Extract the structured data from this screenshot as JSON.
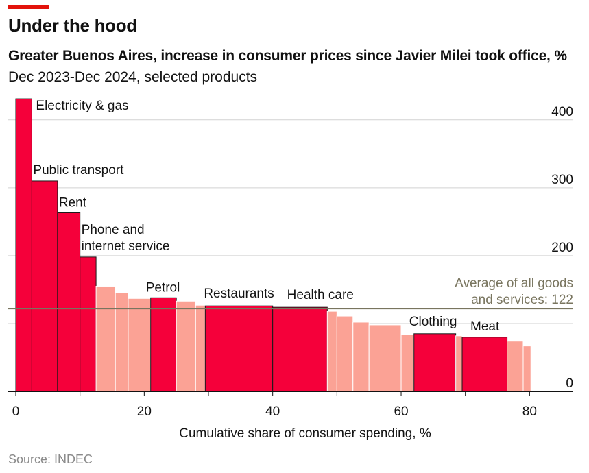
{
  "headline": "Under the hood",
  "title": "Greater Buenos Aires, increase in consumer prices since Javier Milei took office, %",
  "subtitle": "Dec 2023-Dec 2024, selected products",
  "source": "Source: INDEC",
  "colors": {
    "highlight": "#f5003a",
    "other": "#fba295",
    "average_line": "#79755f",
    "accent": "#e3120b"
  },
  "chart_data": {
    "type": "bar",
    "variable_width": true,
    "xlabel": "Cumulative share of consumer spending, %",
    "ylabel": "",
    "xlim": [
      0,
      86
    ],
    "ylim": [
      0,
      420
    ],
    "x_ticks": [
      "0",
      "20",
      "40",
      "60",
      "80"
    ],
    "y_ticks": [
      "400",
      "300",
      "200",
      "0"
    ],
    "grid": true,
    "average": {
      "value": 122,
      "label_line1": "Average of all goods",
      "label_line2": "and services: 122"
    },
    "bars": [
      {
        "x0": 0,
        "x1": 2.5,
        "value": 431,
        "highlight": true,
        "label": "Electricity & gas"
      },
      {
        "x0": 2.5,
        "x1": 6.5,
        "value": 310,
        "highlight": true,
        "label": "Public transport"
      },
      {
        "x0": 6.5,
        "x1": 10,
        "value": 264,
        "highlight": true,
        "label": "Rent"
      },
      {
        "x0": 10,
        "x1": 12.5,
        "value": 198,
        "highlight": true,
        "label": "Phone and internet service"
      },
      {
        "x0": 12.5,
        "x1": 15.5,
        "value": 155,
        "highlight": false
      },
      {
        "x0": 15.5,
        "x1": 17.5,
        "value": 145,
        "highlight": false
      },
      {
        "x0": 17.5,
        "x1": 21,
        "value": 137,
        "highlight": false
      },
      {
        "x0": 21,
        "x1": 25,
        "value": 138,
        "highlight": true,
        "label": "Petrol"
      },
      {
        "x0": 25,
        "x1": 28,
        "value": 133,
        "highlight": false
      },
      {
        "x0": 28,
        "x1": 29.5,
        "value": 127,
        "highlight": false
      },
      {
        "x0": 29.5,
        "x1": 40,
        "value": 126,
        "highlight": true,
        "label": "Restaurants"
      },
      {
        "x0": 40,
        "x1": 48.5,
        "value": 124,
        "highlight": true,
        "label": "Health care"
      },
      {
        "x0": 48.5,
        "x1": 50,
        "value": 118,
        "highlight": false
      },
      {
        "x0": 50,
        "x1": 52.5,
        "value": 111,
        "highlight": false
      },
      {
        "x0": 52.5,
        "x1": 55,
        "value": 102,
        "highlight": false
      },
      {
        "x0": 55,
        "x1": 60,
        "value": 98,
        "highlight": false
      },
      {
        "x0": 60,
        "x1": 62,
        "value": 84,
        "highlight": false
      },
      {
        "x0": 62,
        "x1": 68.5,
        "value": 85,
        "highlight": true,
        "label": "Clothing"
      },
      {
        "x0": 68.5,
        "x1": 69.5,
        "value": 82,
        "highlight": false
      },
      {
        "x0": 69.5,
        "x1": 76.5,
        "value": 80,
        "highlight": true,
        "label": "Meat"
      },
      {
        "x0": 76.5,
        "x1": 79,
        "value": 74,
        "highlight": false
      },
      {
        "x0": 79,
        "x1": 80.2,
        "value": 67,
        "highlight": false
      }
    ]
  }
}
